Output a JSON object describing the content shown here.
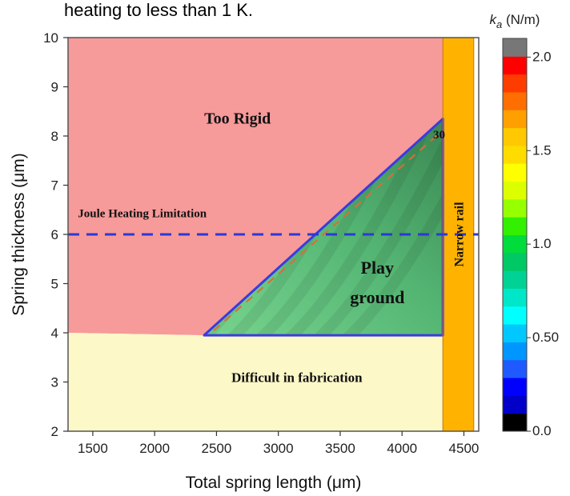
{
  "caption_fragment": "heating to less than 1 K.",
  "chart_data": {
    "type": "area",
    "xlabel": "Total spring length (μm)",
    "ylabel": "Spring thickness (μm)",
    "xlim": [
      1300,
      4620
    ],
    "ylim": [
      2,
      10
    ],
    "xticks": [
      "1500",
      "2000",
      "2500",
      "3000",
      "3500",
      "4000",
      "4500"
    ],
    "yticks": [
      "2",
      "3",
      "4",
      "5",
      "6",
      "7",
      "8",
      "9",
      "10"
    ],
    "regions": [
      {
        "label": "Too Rigid",
        "color": "#f79a9a",
        "polygon": [
          [
            1300,
            10
          ],
          [
            4330,
            10
          ],
          [
            4330,
            8.35
          ],
          [
            2400,
            3.95
          ],
          [
            1300,
            4.0
          ]
        ]
      },
      {
        "label": "Difficult in fabrication",
        "color": "#fdf8c8",
        "polygon": [
          [
            1300,
            4.0
          ],
          [
            2400,
            3.95
          ],
          [
            4330,
            3.95
          ],
          [
            4330,
            2
          ],
          [
            1300,
            2
          ]
        ]
      },
      {
        "label": "Play ground",
        "color": "#3ca55e",
        "polygon": [
          [
            2400,
            3.95
          ],
          [
            4330,
            8.35
          ],
          [
            4330,
            3.95
          ]
        ]
      },
      {
        "label": "Narrow rail",
        "color": "#ffb300",
        "polygon": [
          [
            4330,
            10
          ],
          [
            4580,
            10
          ],
          [
            4580,
            2
          ],
          [
            4330,
            2
          ]
        ]
      }
    ],
    "annotations": [
      {
        "text": "Joule Heating Limitation",
        "x": 1900,
        "y": 6.35
      },
      {
        "text": "Too Rigid",
        "x": 2670,
        "y": 8.25
      },
      {
        "text": "Play",
        "x": 3800,
        "y": 5.2
      },
      {
        "text": "ground",
        "x": 3800,
        "y": 4.6
      },
      {
        "text": "Difficult in fabrication",
        "x": 3150,
        "y": 3.0
      },
      {
        "text": "Narrow rail",
        "x": 4455,
        "y": 6.0
      },
      {
        "text": "30",
        "x": 4300,
        "y": 7.95
      }
    ],
    "reference_line": {
      "label": "Joule Heating Limitation",
      "y": 6.0,
      "style": "dashed",
      "color": "#2b39d6"
    },
    "colorbar": {
      "title": "k_a (N/m)",
      "range": [
        0,
        2.1
      ],
      "ticks": [
        "0.0",
        "0.50",
        "1.0",
        "1.5",
        "2.0"
      ],
      "tick_values": [
        0.0,
        0.5,
        1.0,
        1.5,
        2.0
      ],
      "colors": [
        "#000000",
        "#0000c8",
        "#0000ff",
        "#1e5aff",
        "#0096ff",
        "#00c8ff",
        "#00ffff",
        "#00e6c8",
        "#00d296",
        "#00c864",
        "#00dc3c",
        "#32f000",
        "#96ff00",
        "#dcff00",
        "#ffff00",
        "#ffdc00",
        "#ffc800",
        "#ffa000",
        "#ff6e00",
        "#ff3c00",
        "#ff0000",
        "#777777"
      ]
    },
    "grid": false,
    "legend": "colorbar-right"
  }
}
